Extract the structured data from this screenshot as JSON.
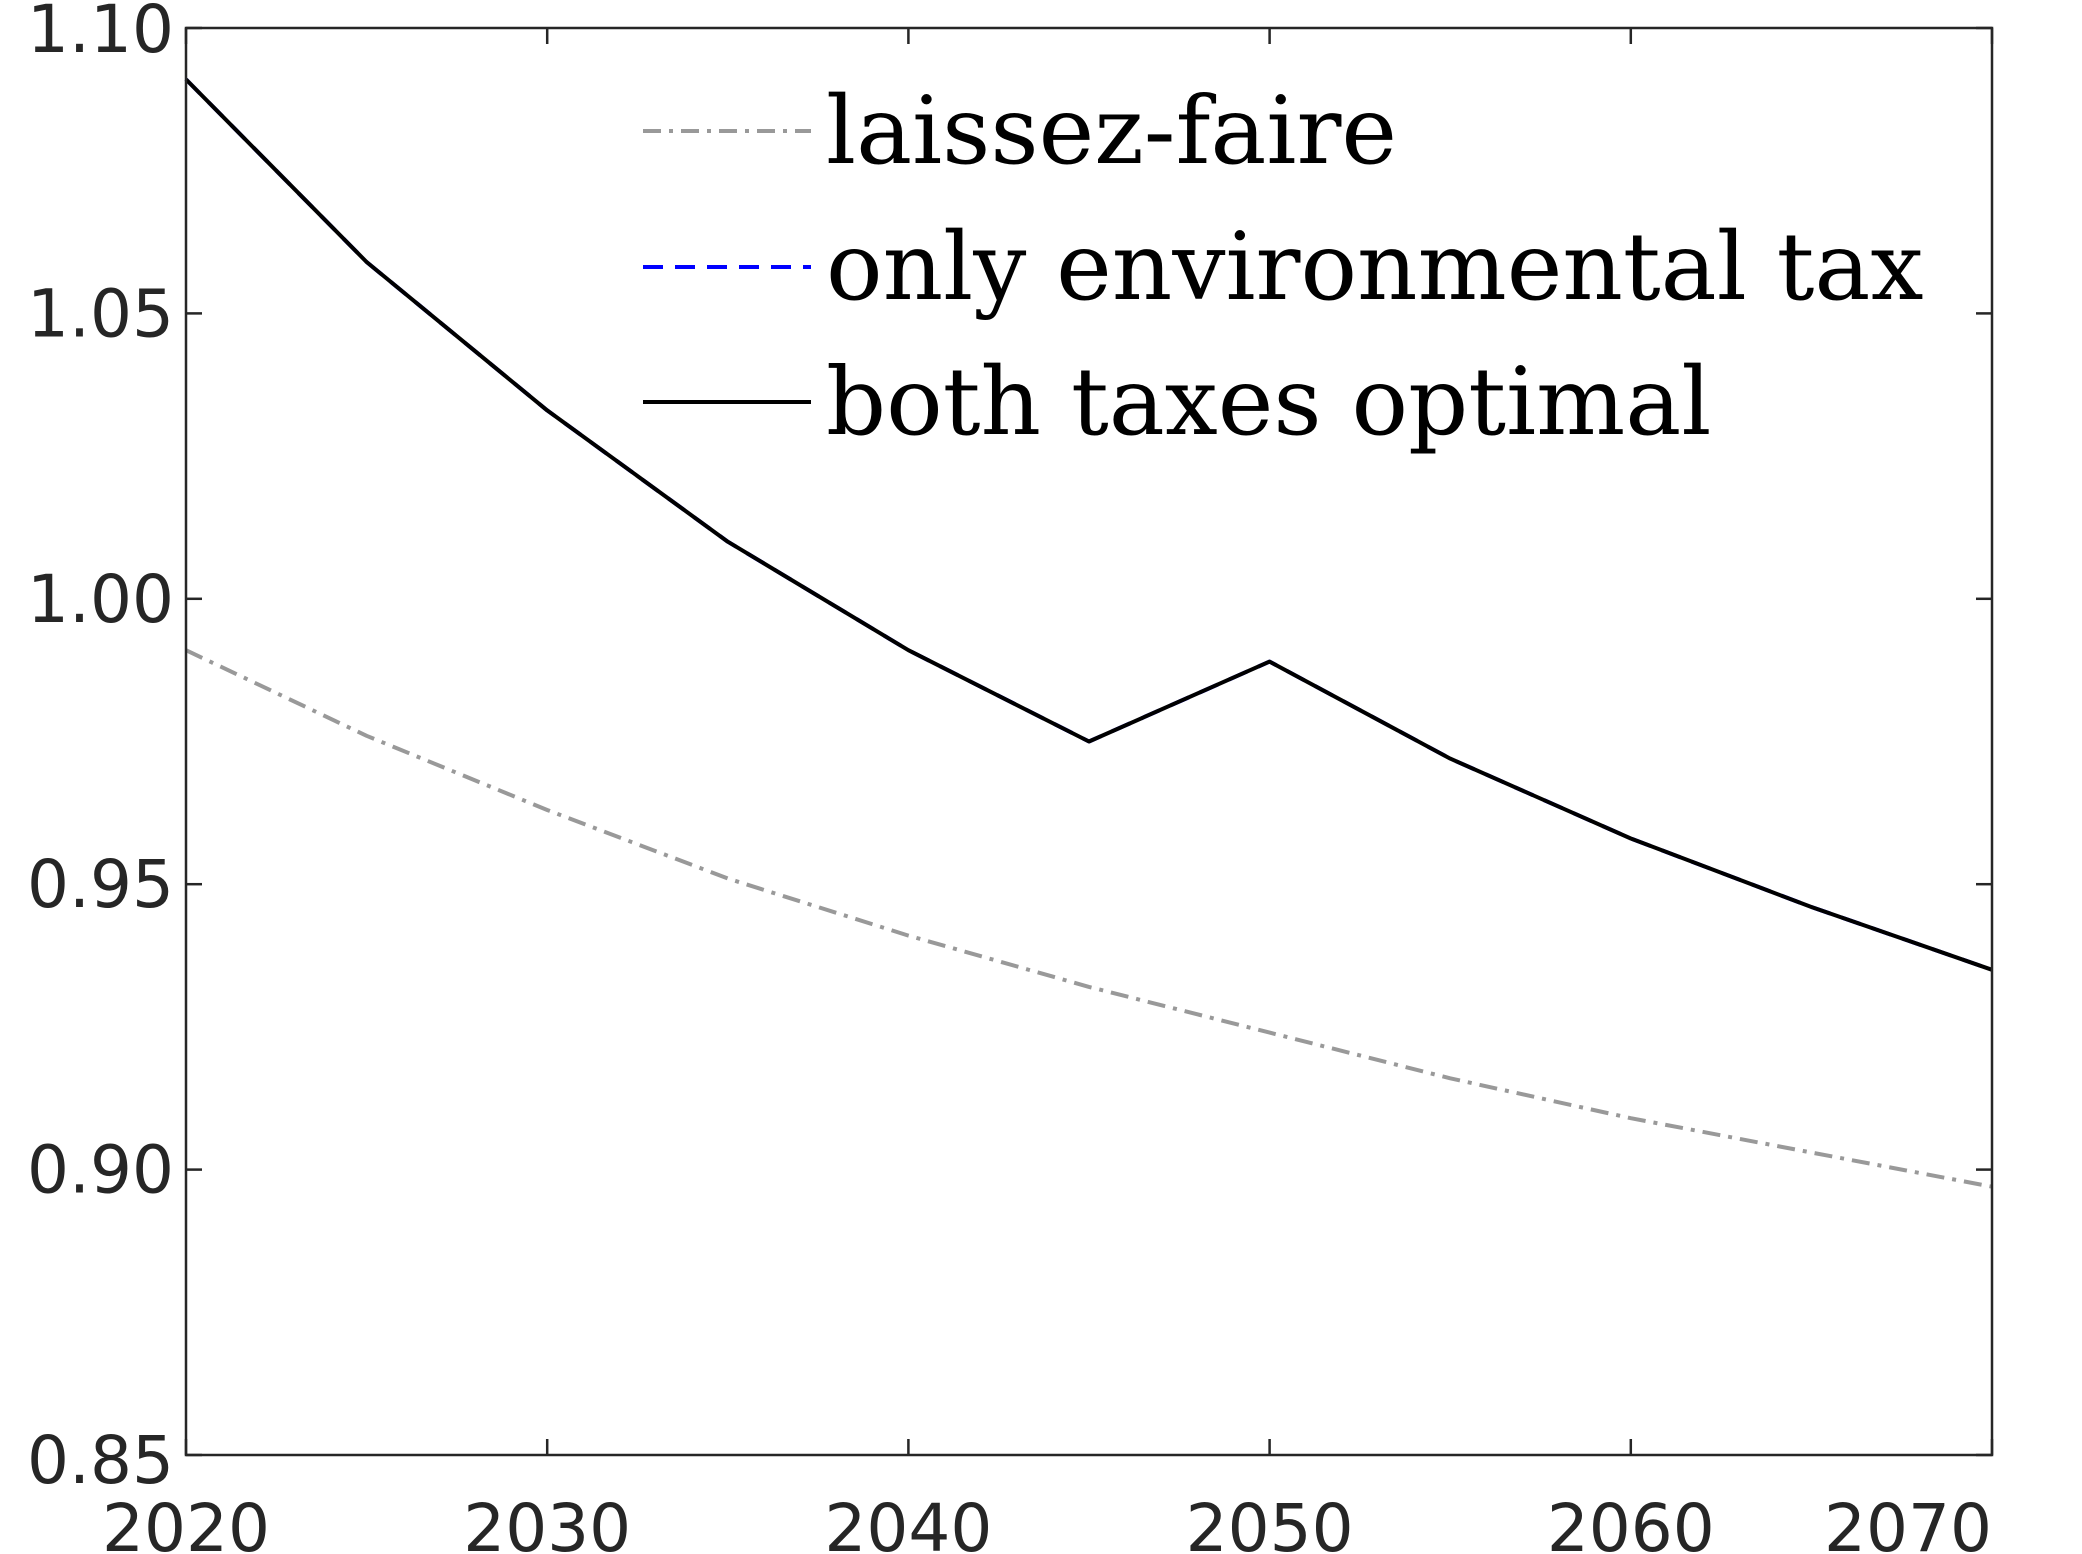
{
  "chart_data": {
    "type": "line",
    "title": "",
    "xlabel": "",
    "ylabel": "",
    "xlim": [
      2020,
      2070
    ],
    "ylim": [
      0.85,
      1.1
    ],
    "xticks": [
      "2020",
      "2030",
      "2040",
      "2050",
      "2060",
      "2070"
    ],
    "yticks": [
      "0.85",
      "0.90",
      "0.95",
      "1.00",
      "1.05",
      "1.10"
    ],
    "grid": false,
    "legend_position": "top",
    "x": [
      2020,
      2025,
      2030,
      2035,
      2040,
      2045,
      2050,
      2055,
      2060,
      2065,
      2070
    ],
    "series": [
      {
        "name": "laissez-faire",
        "color": "#999999",
        "dash": "dash-dot",
        "values": [
          0.991,
          0.976,
          0.963,
          0.951,
          0.941,
          0.932,
          0.924,
          0.916,
          0.909,
          0.903,
          0.897
        ]
      },
      {
        "name": "only environmental tax",
        "color": "#0000ff",
        "dash": "dashed",
        "values": [
          1.091,
          1.059,
          1.033,
          1.01,
          0.991,
          0.975,
          0.989,
          0.972,
          0.958,
          0.946,
          0.935
        ]
      },
      {
        "name": "both taxes optimal",
        "color": "#000000",
        "dash": "solid",
        "values": [
          1.091,
          1.059,
          1.033,
          1.01,
          0.991,
          0.975,
          0.989,
          0.972,
          0.958,
          0.946,
          0.935
        ]
      }
    ]
  }
}
